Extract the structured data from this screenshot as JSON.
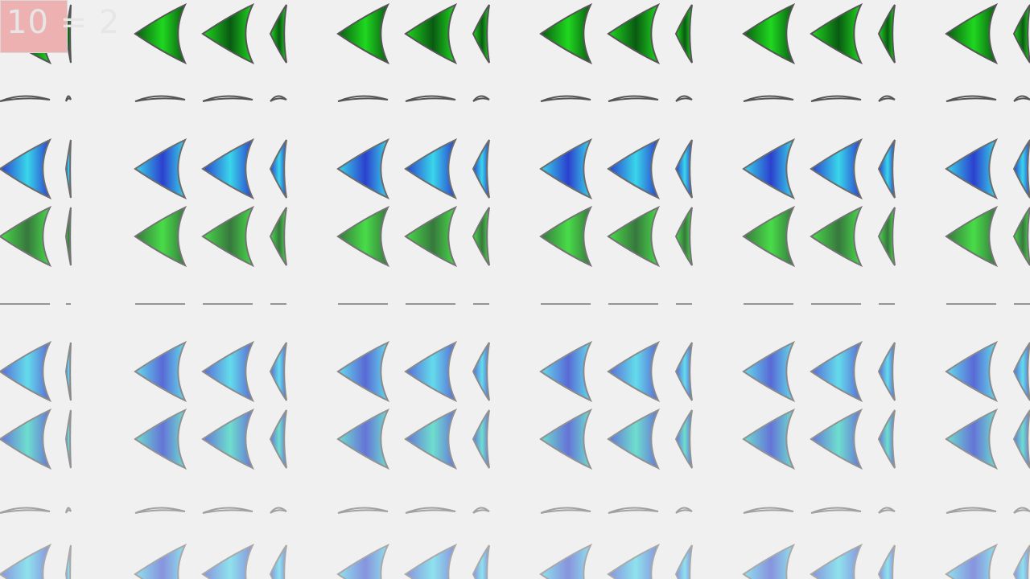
{
  "formula_text": "10 = 2",
  "colors": {
    "background": "#f0f0f0",
    "badge": "#eeb1b1",
    "green_light": "#1fd81f",
    "green_dark": "#0a5a12",
    "cyan_light": "#19d2ea",
    "blue_dark": "#0a22c8",
    "teal": "#18d4b8",
    "outline": "#555555"
  },
  "rows": [
    {
      "kind": "fan",
      "scheme": "green",
      "fade": 0.0
    },
    {
      "kind": "sliver",
      "scheme": "gray",
      "fade": 0.0
    },
    {
      "kind": "fan",
      "scheme": "cyan",
      "fade": 0.15
    },
    {
      "kind": "fan",
      "scheme": "green",
      "fade": 0.2
    },
    {
      "kind": "line",
      "scheme": "gray",
      "fade": 0.25
    },
    {
      "kind": "fan",
      "scheme": "cyan",
      "fade": 0.35
    },
    {
      "kind": "fan",
      "scheme": "teal",
      "fade": 0.4
    },
    {
      "kind": "sliver",
      "scheme": "gray",
      "fade": 0.5
    },
    {
      "kind": "fan",
      "scheme": "cyan",
      "fade": 0.55
    }
  ]
}
